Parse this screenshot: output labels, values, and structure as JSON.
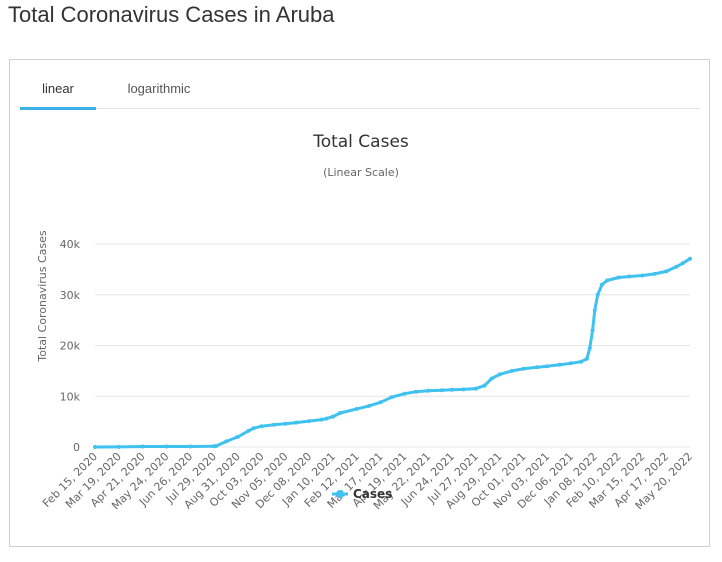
{
  "page": {
    "title": "Total Coronavirus Cases in Aruba"
  },
  "tabs": [
    {
      "label": "linear",
      "active": true
    },
    {
      "label": "logarithmic",
      "active": false
    }
  ],
  "colors": {
    "series": "#40c2f0",
    "tab_underline": "#3ab4e6",
    "grid": "#e6e6e6"
  },
  "chart_data": {
    "type": "line",
    "title": "Total Cases",
    "subtitle": "(Linear Scale)",
    "ylabel": "Total Coronavirus Cases",
    "xlabel": "",
    "ylim": [
      0,
      40000
    ],
    "yticks": [
      {
        "value": 0,
        "label": "0"
      },
      {
        "value": 10000,
        "label": "10k"
      },
      {
        "value": 20000,
        "label": "20k"
      },
      {
        "value": 30000,
        "label": "30k"
      },
      {
        "value": 40000,
        "label": "40k"
      }
    ],
    "xlim": [
      "2020-02-15",
      "2022-05-20"
    ],
    "x_tick_labels": [
      "Feb 15, 2020",
      "Mar 19, 2020",
      "Apr 21, 2020",
      "May 24, 2020",
      "Jun 26, 2020",
      "Jul 29, 2020",
      "Aug 31, 2020",
      "Oct 03, 2020",
      "Nov 05, 2020",
      "Dec 08, 2020",
      "Jan 10, 2021",
      "Feb 12, 2021",
      "Mar 17, 2021",
      "Apr 19, 2021",
      "May 22, 2021",
      "Jun 24, 2021",
      "Jul 27, 2021",
      "Aug 29, 2021",
      "Oct 01, 2021",
      "Nov 03, 2021",
      "Dec 06, 2021",
      "Jan 08, 2022",
      "Feb 10, 2022",
      "Mar 15, 2022",
      "Apr 17, 2022",
      "May 20, 2022"
    ],
    "grid": true,
    "legend": "bottom-center",
    "series": [
      {
        "name": "Cases",
        "points": [
          [
            "2020-02-15",
            0
          ],
          [
            "2020-03-19",
            10
          ],
          [
            "2020-04-21",
            100
          ],
          [
            "2020-05-24",
            101
          ],
          [
            "2020-06-26",
            103
          ],
          [
            "2020-07-29",
            140
          ],
          [
            "2020-08-01",
            200
          ],
          [
            "2020-08-15",
            1100
          ],
          [
            "2020-08-31",
            2000
          ],
          [
            "2020-09-15",
            3200
          ],
          [
            "2020-09-22",
            3700
          ],
          [
            "2020-10-03",
            4100
          ],
          [
            "2020-10-20",
            4400
          ],
          [
            "2020-11-05",
            4600
          ],
          [
            "2020-11-20",
            4800
          ],
          [
            "2020-12-08",
            5100
          ],
          [
            "2020-12-25",
            5400
          ],
          [
            "2021-01-01",
            5600
          ],
          [
            "2021-01-10",
            6000
          ],
          [
            "2021-01-20",
            6700
          ],
          [
            "2021-02-12",
            7500
          ],
          [
            "2021-03-01",
            8100
          ],
          [
            "2021-03-17",
            8800
          ],
          [
            "2021-04-01",
            9800
          ],
          [
            "2021-04-19",
            10500
          ],
          [
            "2021-05-05",
            10900
          ],
          [
            "2021-05-22",
            11100
          ],
          [
            "2021-06-10",
            11200
          ],
          [
            "2021-06-24",
            11300
          ],
          [
            "2021-07-10",
            11350
          ],
          [
            "2021-07-27",
            11500
          ],
          [
            "2021-08-08",
            12100
          ],
          [
            "2021-08-18",
            13500
          ],
          [
            "2021-08-29",
            14300
          ],
          [
            "2021-09-15",
            15000
          ],
          [
            "2021-10-01",
            15400
          ],
          [
            "2021-10-20",
            15700
          ],
          [
            "2021-11-03",
            15900
          ],
          [
            "2021-11-20",
            16200
          ],
          [
            "2021-12-06",
            16500
          ],
          [
            "2021-12-20",
            16800
          ],
          [
            "2021-12-28",
            17400
          ],
          [
            "2022-01-01",
            19500
          ],
          [
            "2022-01-05",
            23000
          ],
          [
            "2022-01-08",
            27000
          ],
          [
            "2022-01-12",
            30000
          ],
          [
            "2022-01-18",
            32000
          ],
          [
            "2022-01-25",
            32800
          ],
          [
            "2022-02-10",
            33400
          ],
          [
            "2022-02-25",
            33600
          ],
          [
            "2022-03-15",
            33800
          ],
          [
            "2022-04-01",
            34100
          ],
          [
            "2022-04-17",
            34600
          ],
          [
            "2022-05-01",
            35500
          ],
          [
            "2022-05-10",
            36200
          ],
          [
            "2022-05-20",
            37100
          ]
        ]
      }
    ]
  }
}
